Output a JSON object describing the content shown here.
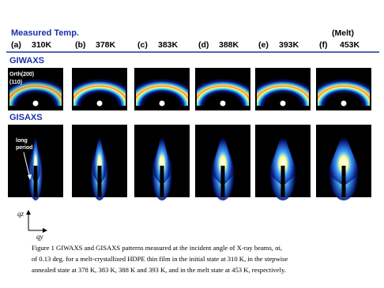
{
  "header": {
    "title": "Measured Temp.",
    "melt": "(Melt)"
  },
  "panels": [
    {
      "letter": "(a)",
      "temp": "310K"
    },
    {
      "letter": "(b)",
      "temp": "378K"
    },
    {
      "letter": "(c)",
      "temp": "383K"
    },
    {
      "letter": "(d)",
      "temp": "388K"
    },
    {
      "letter": "(e)",
      "temp": "393K"
    },
    {
      "letter": "(f)",
      "temp": "453K"
    }
  ],
  "sections": {
    "giwaxs": "GIWAXS",
    "gisaxs": "GISAXS"
  },
  "annotations": {
    "orth": "Orth(200)",
    "plane": "(110)",
    "long1": "long",
    "long2": "period"
  },
  "axes": {
    "qz": "qz",
    "qy": "qy"
  },
  "caption": [
    "Figure 1   GIWAXS and GISAXS patterns measured at the incident angle of X-ray beams, αi,",
    "of 0.13 deg. for a melt-crystallized HDPE thin film in the initial state at 310 K, in the stepwise",
    "annealed state at 378 K, 383 K, 388 K and 393 K, and in the melt state at 453 K, respectively."
  ]
}
